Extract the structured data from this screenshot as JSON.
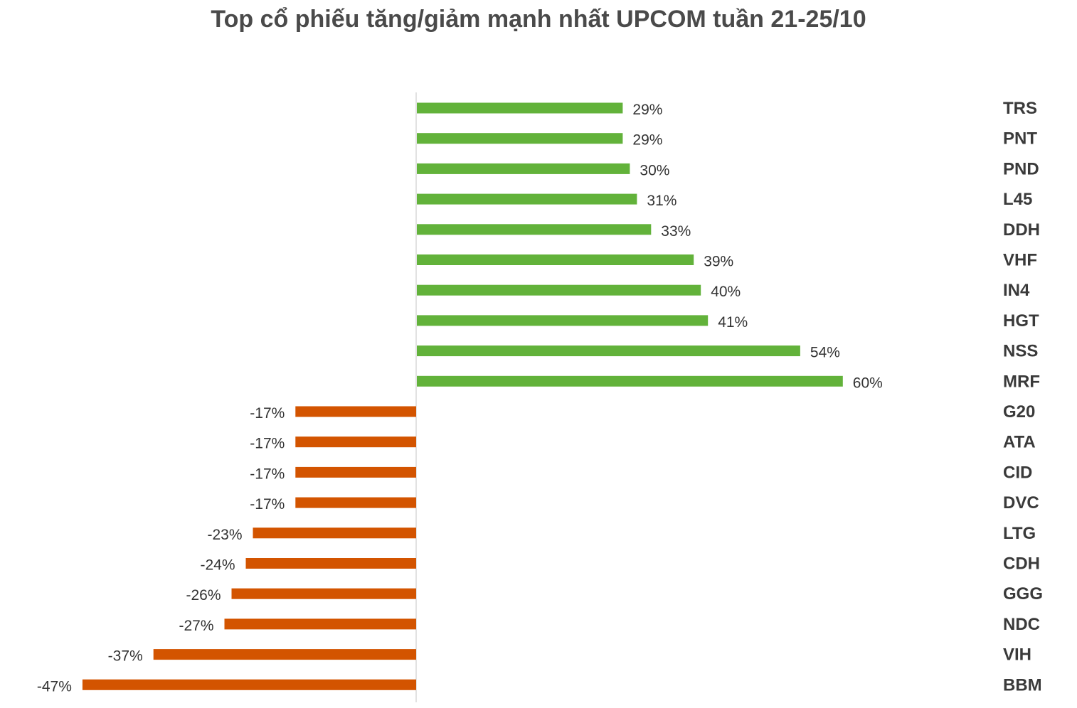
{
  "chart_data": {
    "type": "bar",
    "orientation": "horizontal",
    "title": "Top cổ phiếu tăng/giảm mạnh nhất UPCOM tuần 21-25/10",
    "xlabel": "",
    "ylabel": "",
    "xlim": [
      -0.47,
      0.6
    ],
    "grid": false,
    "legend": "none",
    "categories": [
      "TRS",
      "PNT",
      "PND",
      "L45",
      "DDH",
      "VHF",
      "IN4",
      "HGT",
      "NSS",
      "MRF",
      "G20",
      "ATA",
      "CID",
      "DVC",
      "LTG",
      "CDH",
      "GGG",
      "NDC",
      "VIH",
      "BBM"
    ],
    "values": [
      0.29,
      0.29,
      0.3,
      0.31,
      0.33,
      0.39,
      0.4,
      0.41,
      0.54,
      0.6,
      -0.17,
      -0.17,
      -0.17,
      -0.17,
      -0.23,
      -0.24,
      -0.26,
      -0.27,
      -0.37,
      -0.47
    ],
    "value_labels": [
      "29%",
      "29%",
      "30%",
      "31%",
      "33%",
      "39%",
      "40%",
      "41%",
      "54%",
      "60%",
      "-17%",
      "-17%",
      "-17%",
      "-17%",
      "-23%",
      "-24%",
      "-26%",
      "-27%",
      "-37%",
      "-47%"
    ],
    "colors": {
      "positive": "#62b23a",
      "negative": "#d35400",
      "axis": "#d9d9d9"
    }
  }
}
